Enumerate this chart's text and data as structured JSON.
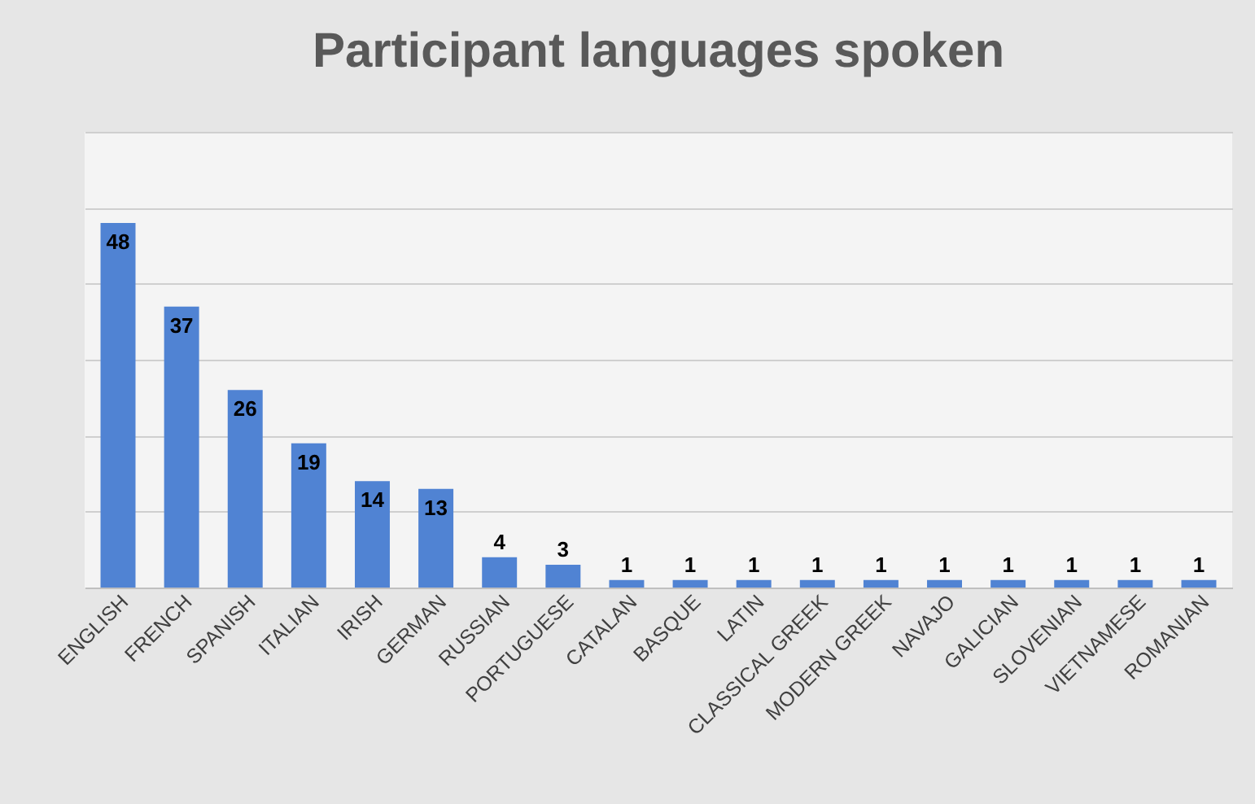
{
  "chart_data": {
    "type": "bar",
    "title": "Participant languages spoken",
    "categories": [
      "ENGLISH",
      "FRENCH",
      "SPANISH",
      "ITALIAN",
      "IRISH",
      "GERMAN",
      "RUSSIAN",
      "PORTUGUESE",
      "CATALAN",
      "BASQUE",
      "LATIN",
      "CLASSICAL GREEK",
      "MODERN GREEK",
      "NAVAJO",
      "GALICIAN",
      "SLOVENIAN",
      "VIETNAMESE",
      "ROMANIAN"
    ],
    "values": [
      48,
      37,
      26,
      19,
      14,
      13,
      4,
      3,
      1,
      1,
      1,
      1,
      1,
      1,
      1,
      1,
      1,
      1
    ],
    "color": "#5083d3",
    "ylim": [
      0,
      60
    ],
    "yticks": [
      {
        "value": 0,
        "label": null
      },
      {
        "value": 10,
        "label": null
      },
      {
        "value": 20,
        "label": null
      },
      {
        "value": 30,
        "label": null
      },
      {
        "value": 40,
        "label": null
      },
      {
        "value": 50,
        "label": null
      },
      {
        "value": 60,
        "label": null
      }
    ],
    "tick_labels": "x",
    "grid": "y",
    "data_labels": true
  }
}
